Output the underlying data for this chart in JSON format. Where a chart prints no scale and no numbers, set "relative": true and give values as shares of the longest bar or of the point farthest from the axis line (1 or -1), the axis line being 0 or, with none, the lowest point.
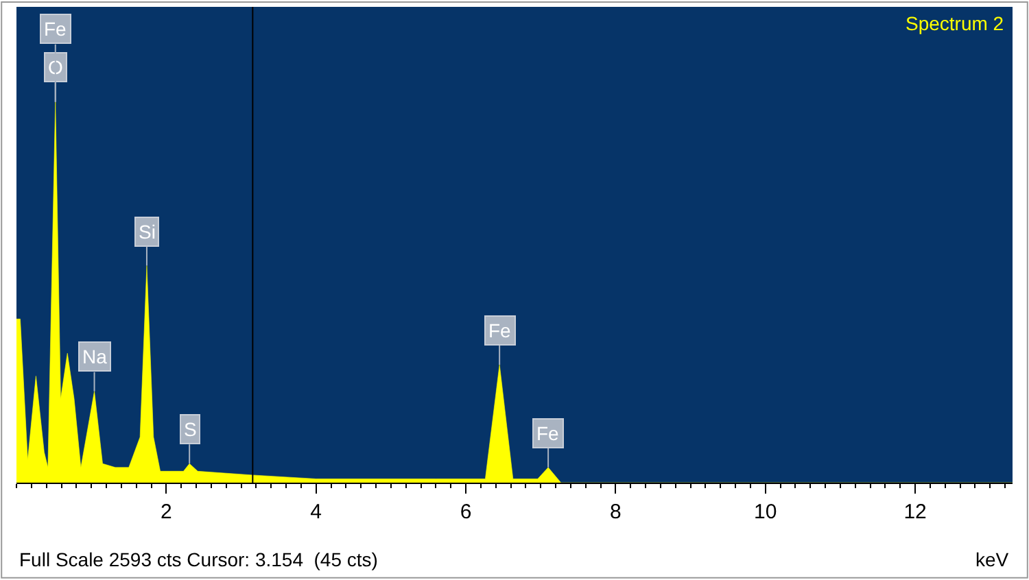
{
  "chart_data": {
    "type": "area",
    "title": "Spectrum 2",
    "xlabel": "keV",
    "relative": true,
    "legend": false,
    "grid": false,
    "x": [
      0,
      0.05,
      0.15,
      0.26,
      0.37,
      0.42,
      0.52,
      0.59,
      0.68,
      0.77,
      0.86,
      1.04,
      1.15,
      1.32,
      1.5,
      1.65,
      1.74,
      1.83,
      1.92,
      2.23,
      2.31,
      2.42,
      3.15,
      4.0,
      5.6,
      6.26,
      6.45,
      6.63,
      6.96,
      7.1,
      7.27,
      7.64,
      13.3
    ],
    "series": [
      {
        "color": "#ffff00",
        "values": [
          0.43,
          0.43,
          0.06,
          0.28,
          0.08,
          0.04,
          1.0,
          0.22,
          0.34,
          0.22,
          0.04,
          0.24,
          0.05,
          0.04,
          0.04,
          0.12,
          0.57,
          0.12,
          0.03,
          0.03,
          0.05,
          0.03,
          0.02,
          0.01,
          0.01,
          0.01,
          0.31,
          0.01,
          0.01,
          0.04,
          0.0,
          0.0,
          0.0
        ]
      }
    ],
    "xlim": [
      0,
      13.3
    ],
    "xticks": [
      2,
      4,
      6,
      8,
      10,
      12
    ],
    "ref_lines": [
      {
        "axis": "x",
        "value": 3.154,
        "color": "#000000"
      }
    ],
    "annotations": [
      {
        "text": "O",
        "x": 0.52,
        "y": 1.0
      },
      {
        "text": "Fe",
        "x": 0.52,
        "y": 1.0
      },
      {
        "text": "Na",
        "x": 1.04,
        "y": 0.24
      },
      {
        "text": "Si",
        "x": 1.74,
        "y": 0.57
      },
      {
        "text": "S",
        "x": 2.31,
        "y": 0.05
      },
      {
        "text": "Fe",
        "x": 6.45,
        "y": 0.31
      },
      {
        "text": "Fe",
        "x": 7.1,
        "y": 0.04
      },
      "Full Scale 2593 cts Cursor: 3.154  (45 cts)"
    ]
  }
}
